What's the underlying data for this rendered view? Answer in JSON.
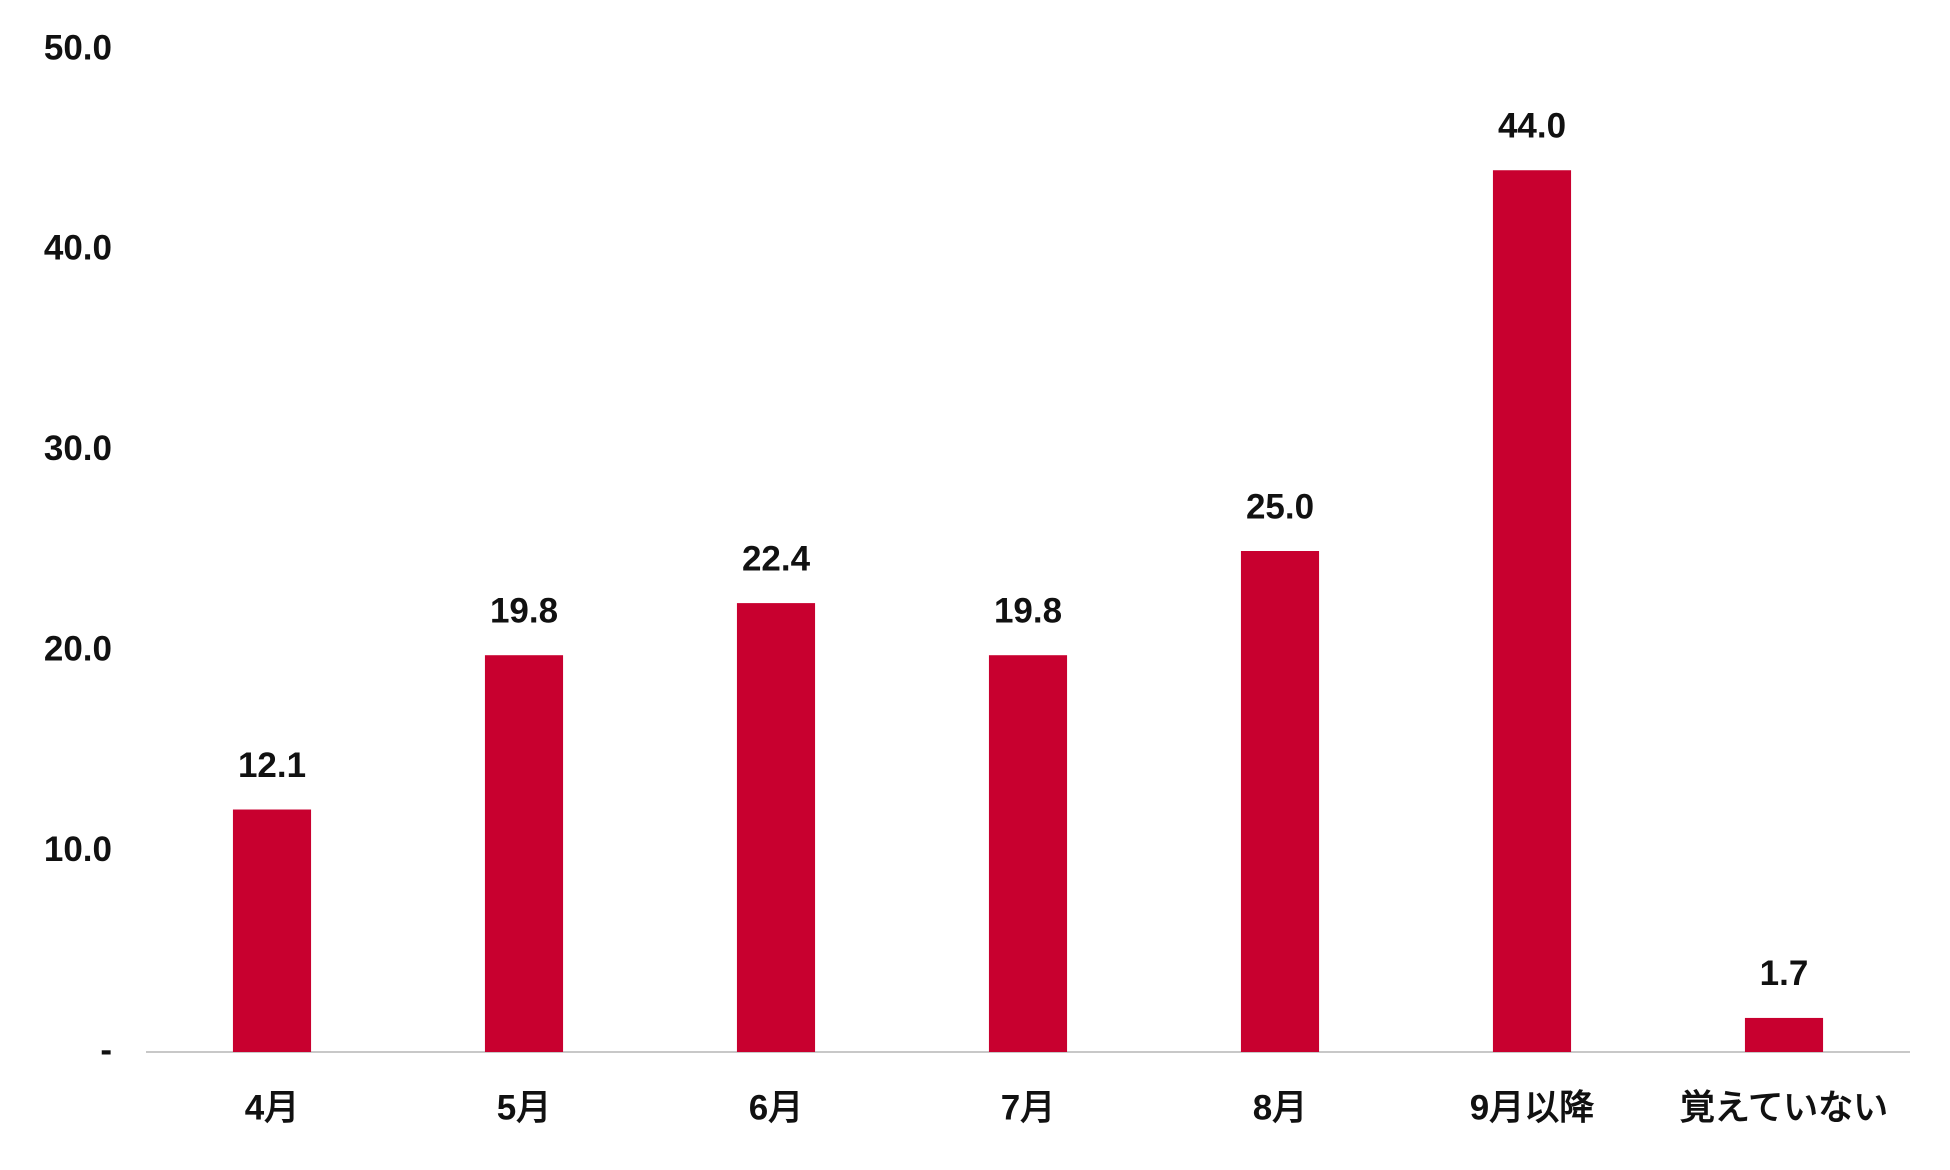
{
  "chart_data": {
    "type": "bar",
    "categories": [
      "4月",
      "5月",
      "6月",
      "7月",
      "8月",
      "9月以降",
      "覚えていない"
    ],
    "values": [
      12.1,
      19.8,
      22.4,
      19.8,
      25.0,
      44.0,
      1.7
    ],
    "value_labels": [
      "12.1",
      "19.8",
      "22.4",
      "19.8",
      "25.0",
      "44.0",
      "1.7"
    ],
    "color": "#c8002f",
    "ylim": [
      0,
      50
    ],
    "yticks": [
      {
        "value": 0,
        "label": "-"
      },
      {
        "value": 10,
        "label": "10.0"
      },
      {
        "value": 20,
        "label": "20.0"
      },
      {
        "value": 30,
        "label": "30.0"
      },
      {
        "value": 40,
        "label": "40.0"
      },
      {
        "value": 50,
        "label": "50.0"
      }
    ],
    "grid": false
  }
}
